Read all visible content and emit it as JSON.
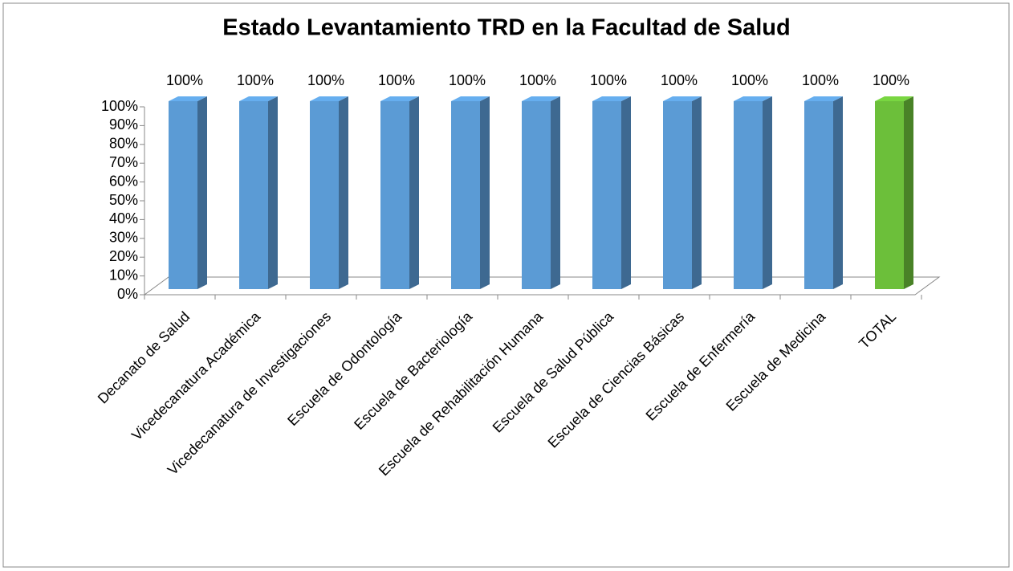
{
  "chart_data": {
    "type": "bar3d",
    "title": "Estado Levantamiento TRD en la Facultad de Salud",
    "categories": [
      "Decanato de Salud",
      "Vicedecanatura Académica",
      "Vicedecanatura de Investigaciones",
      "Escuela de Odontología",
      "Escuela de Bacteriología",
      "Escuela de Rehabilitación Humana",
      "Escuela de Salud Pública",
      "Escuela de Ciencias Básicas",
      "Escuela de Enfermería",
      "Escuela de Medicina",
      "TOTAL"
    ],
    "values": [
      100,
      100,
      100,
      100,
      100,
      100,
      100,
      100,
      100,
      100,
      100
    ],
    "value_labels": [
      "100%",
      "100%",
      "100%",
      "100%",
      "100%",
      "100%",
      "100%",
      "100%",
      "100%",
      "100%",
      "100%"
    ],
    "colors": [
      "#5b9bd5",
      "#5b9bd5",
      "#5b9bd5",
      "#5b9bd5",
      "#5b9bd5",
      "#5b9bd5",
      "#5b9bd5",
      "#5b9bd5",
      "#5b9bd5",
      "#5b9bd5",
      "#6cbf3a"
    ],
    "ylim": [
      0,
      100
    ],
    "yticks": [
      {
        "value": 0,
        "label": "0%"
      },
      {
        "value": 10,
        "label": "10%"
      },
      {
        "value": 20,
        "label": "20%"
      },
      {
        "value": 30,
        "label": "30%"
      },
      {
        "value": 40,
        "label": "40%"
      },
      {
        "value": 50,
        "label": "50%"
      },
      {
        "value": 60,
        "label": "60%"
      },
      {
        "value": 70,
        "label": "70%"
      },
      {
        "value": 80,
        "label": "80%"
      },
      {
        "value": 90,
        "label": "90%"
      },
      {
        "value": 100,
        "label": "100%"
      }
    ]
  }
}
